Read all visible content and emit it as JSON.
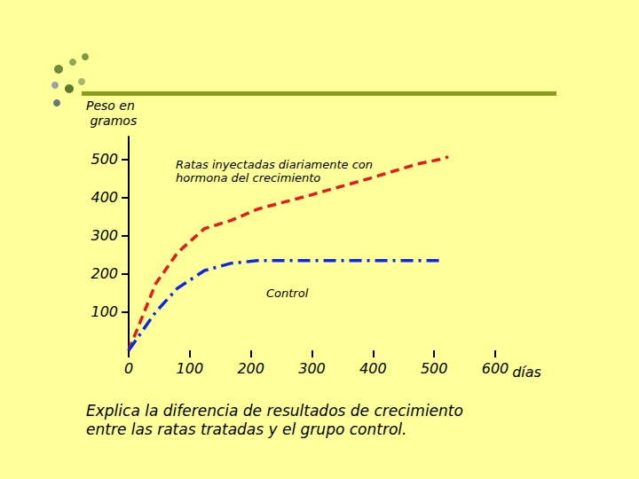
{
  "chart_data": {
    "type": "line",
    "x_label": "días",
    "y_label": "Peso en gramos",
    "x": [
      0,
      44,
      80,
      124,
      167,
      211,
      298,
      400,
      472,
      509,
      523
    ],
    "series": [
      {
        "name": "Ratas inyectadas diariamente con hormona del crecimiento",
        "color": "#e8191b",
        "line_style": "dashed",
        "values": [
          0,
          174,
          256,
          319,
          340,
          370,
          407,
          453,
          488,
          500,
          507
        ]
      },
      {
        "name": "Control",
        "color": "#0a28e6",
        "line_style": "dashdot",
        "values": [
          0,
          100,
          163,
          209,
          228,
          235,
          235,
          235,
          235,
          235,
          null
        ]
      }
    ],
    "xlim": [
      0,
      600
    ],
    "xticks": [
      0,
      100,
      200,
      300,
      400,
      500,
      600
    ],
    "ylim": [
      0,
      560
    ],
    "yticks": [
      100,
      200,
      300,
      400,
      500
    ],
    "grid": false,
    "annotations": [
      "Explica la diferencia de resultados de crecimiento entre las ratas tratadas y el grupo control."
    ]
  }
}
